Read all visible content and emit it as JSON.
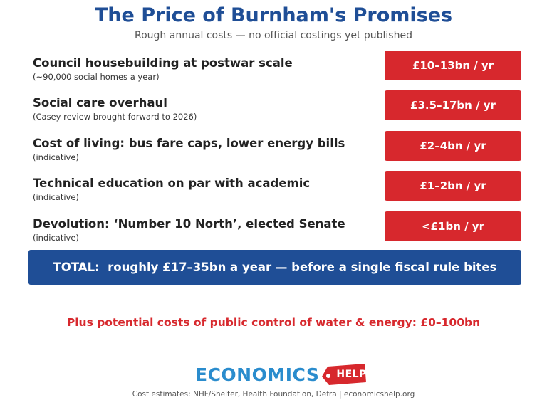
{
  "header": {
    "title": "The Price of Burnham's Promises",
    "subtitle": "Rough annual costs — no official costings yet published"
  },
  "items": [
    {
      "title": "Council housebuilding at postwar scale",
      "note": "(~90,000 social homes a year)",
      "cost": "£10–13bn / yr"
    },
    {
      "title": "Social care overhaul",
      "note": "(Casey review brought forward to 2026)",
      "cost": "£3.5–17bn / yr"
    },
    {
      "title": "Cost of living: bus fare caps, lower energy bills",
      "note": "(indicative)",
      "cost": "£2–4bn / yr"
    },
    {
      "title": "Technical education on par with academic",
      "note": "(indicative)",
      "cost": "£1–2bn / yr"
    },
    {
      "title": "Devolution: ‘Number 10 North’, elected Senate",
      "note": "(indicative)",
      "cost": "<£1bn / yr"
    }
  ],
  "total": "TOTAL:  roughly £17–35bn a year — before a single fiscal rule bites",
  "plus_note": "Plus potential costs of public control of water & energy: £0–100bn",
  "logo": {
    "word": "ECONOMICS",
    "tag": "HELP"
  },
  "footer": "Cost estimates: NHF/Shelter, Health Foundation, Defra  |  economicshelp.org",
  "colors": {
    "title_blue": "#1f4e96",
    "badge_red": "#d7282d",
    "logo_blue": "#2a8ccd",
    "logo_red": "#d7282d"
  }
}
